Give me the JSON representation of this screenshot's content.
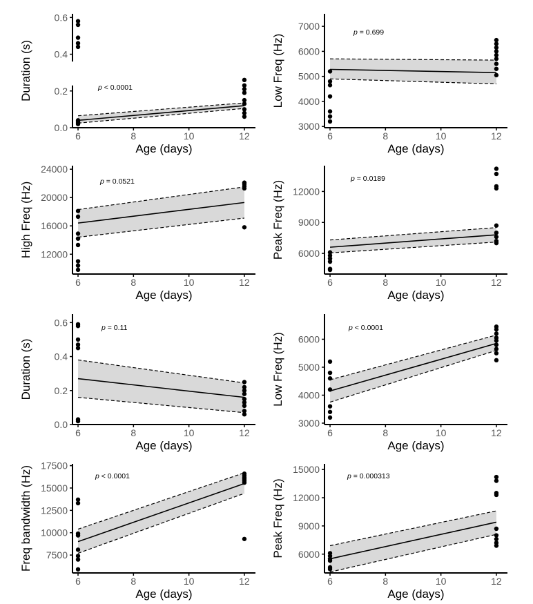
{
  "figure": {
    "colors": {
      "points": "#000000",
      "line": "#000000",
      "band": "#d9d9d9",
      "axis": "#000000",
      "tick_text": "#555555"
    }
  },
  "chart_data": [
    {
      "type": "scatter",
      "panel": "duration-1",
      "xlabel": "Age (days)",
      "ylabel": "Duration (s)",
      "xlim": [
        5.8,
        12.4
      ],
      "ylim": [
        0,
        0.62
      ],
      "xticks": [
        6,
        8,
        10,
        12
      ],
      "yticks": [
        0.0,
        0.2,
        0.4,
        0.6
      ],
      "ytick_labels": [
        "0.0",
        "0.2",
        "0.4",
        "0.6"
      ],
      "axis_break": [
        0.23,
        0.36
      ],
      "p_prefix": "p",
      "p_value": " < 0.0001",
      "points": [
        [
          6,
          0.58
        ],
        [
          6,
          0.56
        ],
        [
          6,
          0.49
        ],
        [
          6,
          0.46
        ],
        [
          6,
          0.44
        ],
        [
          6,
          0.04
        ],
        [
          6,
          0.03
        ],
        [
          6,
          0.02
        ],
        [
          12,
          0.26
        ],
        [
          12,
          0.23
        ],
        [
          12,
          0.21
        ],
        [
          12,
          0.19
        ],
        [
          12,
          0.15
        ],
        [
          12,
          0.13
        ],
        [
          12,
          0.1
        ],
        [
          12,
          0.08
        ],
        [
          12,
          0.06
        ]
      ],
      "fit": {
        "x": [
          6,
          12
        ],
        "y": [
          0.04,
          0.12
        ]
      },
      "ci": {
        "lower": [
          0.025,
          0.105
        ],
        "upper": [
          0.065,
          0.135
        ]
      }
    },
    {
      "type": "scatter",
      "panel": "low-freq-1",
      "xlabel": "Age (days)",
      "ylabel": "Low Freq (Hz)",
      "xlim": [
        5.8,
        12.4
      ],
      "ylim": [
        2950,
        7500
      ],
      "xticks": [
        6,
        8,
        10,
        12
      ],
      "yticks": [
        3000,
        4000,
        5000,
        6000,
        7000
      ],
      "ytick_labels": [
        "3000",
        "4000",
        "5000",
        "6000",
        "7000"
      ],
      "p_prefix": "p",
      "p_value": " = 0.699",
      "points": [
        [
          6,
          5200
        ],
        [
          6,
          4800
        ],
        [
          6,
          4650
        ],
        [
          6,
          4200
        ],
        [
          6,
          3600
        ],
        [
          6,
          3400
        ],
        [
          6,
          3200
        ],
        [
          12,
          6450
        ],
        [
          12,
          6300
        ],
        [
          12,
          6150
        ],
        [
          12,
          6000
        ],
        [
          12,
          5850
        ],
        [
          12,
          5700
        ],
        [
          12,
          5500
        ],
        [
          12,
          5300
        ],
        [
          12,
          5050
        ]
      ],
      "fit": {
        "x": [
          6,
          12
        ],
        "y": [
          5280,
          5150
        ]
      },
      "ci": {
        "lower": [
          4900,
          4700
        ],
        "upper": [
          5700,
          5650
        ]
      }
    },
    {
      "type": "scatter",
      "panel": "high-freq-1",
      "xlabel": "Age (days)",
      "ylabel": "High Freq (Hz)",
      "xlim": [
        5.8,
        12.4
      ],
      "ylim": [
        9200,
        24500
      ],
      "xticks": [
        6,
        8,
        10,
        12
      ],
      "yticks": [
        12000,
        16000,
        20000,
        24000
      ],
      "ytick_labels": [
        "12000",
        "16000",
        "20000",
        "24000"
      ],
      "p_prefix": "p",
      "p_value": " = 0.0521",
      "points": [
        [
          6,
          18100
        ],
        [
          6,
          17300
        ],
        [
          6,
          14900
        ],
        [
          6,
          14200
        ],
        [
          6,
          13300
        ],
        [
          6,
          11000
        ],
        [
          6,
          10400
        ],
        [
          6,
          9800
        ],
        [
          12,
          22100
        ],
        [
          12,
          21900
        ],
        [
          12,
          21600
        ],
        [
          12,
          21300
        ],
        [
          12,
          15800
        ]
      ],
      "fit": {
        "x": [
          6,
          12
        ],
        "y": [
          16400,
          19300
        ]
      },
      "ci": {
        "lower": [
          14400,
          17100
        ],
        "upper": [
          18300,
          21500
        ]
      }
    },
    {
      "type": "scatter",
      "panel": "peak-freq-1",
      "xlabel": "Age (days)",
      "ylabel": "Peak Freq (Hz)",
      "xlim": [
        5.8,
        12.4
      ],
      "ylim": [
        4000,
        14500
      ],
      "xticks": [
        6,
        8,
        10,
        12
      ],
      "yticks": [
        6000,
        9000,
        12000
      ],
      "ytick_labels": [
        "6000",
        "9000",
        "12000"
      ],
      "p_prefix": "p",
      "p_value": " = 0.0189",
      "points": [
        [
          6,
          6100
        ],
        [
          6,
          5800
        ],
        [
          6,
          5500
        ],
        [
          6,
          5200
        ],
        [
          6,
          4500
        ],
        [
          6,
          4400
        ],
        [
          12,
          14200
        ],
        [
          12,
          13700
        ],
        [
          12,
          12500
        ],
        [
          12,
          12300
        ],
        [
          12,
          8700
        ],
        [
          12,
          8000
        ],
        [
          12,
          7600
        ],
        [
          12,
          7200
        ],
        [
          12,
          7000
        ]
      ],
      "fit": {
        "x": [
          6,
          12
        ],
        "y": [
          6600,
          7800
        ]
      },
      "ci": {
        "lower": [
          6050,
          7100
        ],
        "upper": [
          7300,
          8500
        ]
      }
    },
    {
      "type": "scatter",
      "panel": "duration-2",
      "xlabel": "Age (days)",
      "ylabel": "Duration (s)",
      "xlim": [
        5.8,
        12.4
      ],
      "ylim": [
        0,
        0.65
      ],
      "xticks": [
        6,
        8,
        10,
        12
      ],
      "yticks": [
        0.0,
        0.2,
        0.4,
        0.6
      ],
      "ytick_labels": [
        "0.0",
        "0.2",
        "0.4",
        "0.6"
      ],
      "p_prefix": "p",
      "p_value": " = 0.11",
      "points": [
        [
          6,
          0.59
        ],
        [
          6,
          0.58
        ],
        [
          6,
          0.5
        ],
        [
          6,
          0.47
        ],
        [
          6,
          0.45
        ],
        [
          6,
          0.03
        ],
        [
          6,
          0.02
        ],
        [
          12,
          0.25
        ],
        [
          12,
          0.22
        ],
        [
          12,
          0.2
        ],
        [
          12,
          0.18
        ],
        [
          12,
          0.15
        ],
        [
          12,
          0.13
        ],
        [
          12,
          0.11
        ],
        [
          12,
          0.08
        ],
        [
          12,
          0.06
        ]
      ],
      "fit": {
        "x": [
          6,
          12
        ],
        "y": [
          0.27,
          0.16
        ]
      },
      "ci": {
        "lower": [
          0.16,
          0.07
        ],
        "upper": [
          0.38,
          0.245
        ]
      }
    },
    {
      "type": "scatter",
      "panel": "low-freq-2",
      "xlabel": "Age (days)",
      "ylabel": "Low Freq (Hz)",
      "xlim": [
        5.8,
        12.4
      ],
      "ylim": [
        2950,
        6900
      ],
      "xticks": [
        6,
        8,
        10,
        12
      ],
      "yticks": [
        3000,
        4000,
        5000,
        6000
      ],
      "ytick_labels": [
        "3000",
        "4000",
        "5000",
        "6000"
      ],
      "p_prefix": "p",
      "p_value": " < 0.0001",
      "points": [
        [
          6,
          5200
        ],
        [
          6,
          4800
        ],
        [
          6,
          4600
        ],
        [
          6,
          4200
        ],
        [
          6,
          3600
        ],
        [
          6,
          3400
        ],
        [
          6,
          3200
        ],
        [
          12,
          6450
        ],
        [
          12,
          6350
        ],
        [
          12,
          6200
        ],
        [
          12,
          6050
        ],
        [
          12,
          5950
        ],
        [
          12,
          5800
        ],
        [
          12,
          5650
        ],
        [
          12,
          5500
        ],
        [
          12,
          5250
        ]
      ],
      "fit": {
        "x": [
          6,
          12
        ],
        "y": [
          4150,
          5850
        ]
      },
      "ci": {
        "lower": [
          3750,
          5600
        ],
        "upper": [
          4550,
          6150
        ]
      }
    },
    {
      "type": "scatter",
      "panel": "freq-bandwidth",
      "xlabel": "Age (days)",
      "ylabel": "Freq bandwidth (Hz)",
      "xlim": [
        5.8,
        12.4
      ],
      "ylim": [
        5500,
        17700
      ],
      "xticks": [
        6,
        8,
        10,
        12
      ],
      "yticks": [
        7500,
        10000,
        12500,
        15000,
        17500
      ],
      "ytick_labels": [
        "7500",
        "10000",
        "12500",
        "15000",
        "17500"
      ],
      "p_prefix": "p",
      "p_value": " < 0.0001",
      "points": [
        [
          6,
          13700
        ],
        [
          6,
          13300
        ],
        [
          6,
          9900
        ],
        [
          6,
          9700
        ],
        [
          6,
          8100
        ],
        [
          6,
          7400
        ],
        [
          6,
          7000
        ],
        [
          6,
          5900
        ],
        [
          12,
          16600
        ],
        [
          12,
          16400
        ],
        [
          12,
          16200
        ],
        [
          12,
          16000
        ],
        [
          12,
          15800
        ],
        [
          12,
          15600
        ],
        [
          12,
          9300
        ]
      ],
      "fit": {
        "x": [
          6,
          12
        ],
        "y": [
          9000,
          15500
        ]
      },
      "ci": {
        "lower": [
          7700,
          14400
        ],
        "upper": [
          10400,
          16700
        ]
      }
    },
    {
      "type": "scatter",
      "panel": "peak-freq-2",
      "xlabel": "Age (days)",
      "ylabel": "Peak Freq (Hz)",
      "xlim": [
        5.8,
        12.4
      ],
      "ylim": [
        4000,
        15600
      ],
      "xticks": [
        6,
        8,
        10,
        12
      ],
      "yticks": [
        6000,
        9000,
        12000,
        15000
      ],
      "ytick_labels": [
        "6000",
        "9000",
        "12000",
        "15000"
      ],
      "p_prefix": "p",
      "p_value": " = 0.000313",
      "points": [
        [
          6,
          6100
        ],
        [
          6,
          5800
        ],
        [
          6,
          5500
        ],
        [
          6,
          5300
        ],
        [
          6,
          4600
        ],
        [
          6,
          4400
        ],
        [
          12,
          14200
        ],
        [
          12,
          13800
        ],
        [
          12,
          12500
        ],
        [
          12,
          12300
        ],
        [
          12,
          8700
        ],
        [
          12,
          8000
        ],
        [
          12,
          7600
        ],
        [
          12,
          7200
        ],
        [
          12,
          6900
        ]
      ],
      "fit": {
        "x": [
          6,
          12
        ],
        "y": [
          5500,
          9400
        ]
      },
      "ci": {
        "lower": [
          4100,
          8100
        ],
        "upper": [
          6900,
          10600
        ]
      }
    }
  ]
}
